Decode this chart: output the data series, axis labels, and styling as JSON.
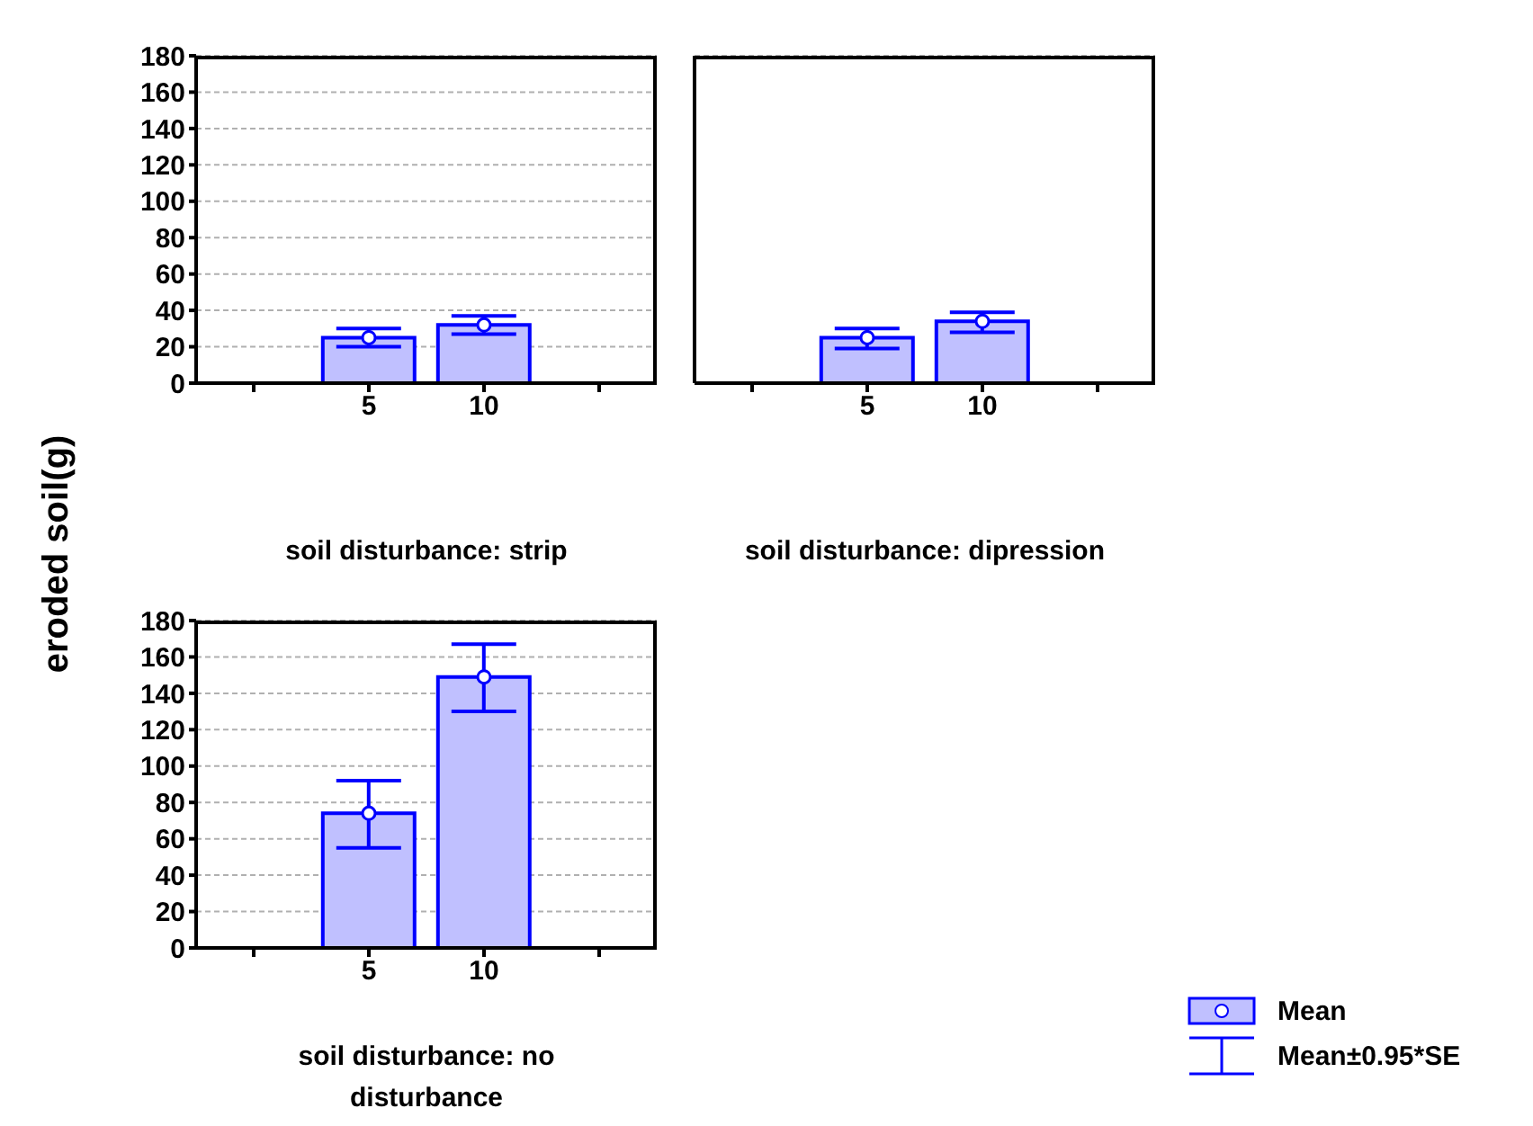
{
  "chart_data": [
    {
      "type": "bar",
      "ylabel": "eroded soil(g)",
      "xlabel": "soil disturbance: strip",
      "categories": [
        null,
        "5",
        "10",
        null
      ],
      "series": [
        {
          "color": "#c0c0ff",
          "values": [
            null,
            25,
            32,
            null
          ],
          "errors": [
            null,
            [
              20,
              30
            ],
            [
              27,
              37
            ],
            null
          ]
        },
        {
          "type": "scatter",
          "color": "#ffffff",
          "x": [
            "5",
            "10"
          ],
          "values": [
            25,
            32
          ]
        }
      ],
      "ylim": [
        0,
        180
      ],
      "yticks": [
        0,
        20,
        40,
        60,
        80,
        100,
        120,
        140,
        160,
        180
      ],
      "grid": "y",
      "marker": "circle"
    },
    {
      "type": "bar",
      "xlabel": "soil disturbance: dipression",
      "categories": [
        null,
        "5",
        "10",
        null
      ],
      "series": [
        {
          "color": "#c0c0ff",
          "values": [
            null,
            25,
            34,
            null
          ],
          "errors": [
            null,
            [
              19,
              30
            ],
            [
              28,
              39
            ],
            null
          ]
        },
        {
          "type": "scatter",
          "color": "#ffffff",
          "x": [
            "5",
            "10"
          ],
          "values": [
            25,
            34
          ]
        }
      ],
      "ylim": [
        0,
        180
      ],
      "yticks": [
        0,
        20,
        40,
        60,
        80,
        100,
        120,
        140,
        160,
        180
      ],
      "grid": "y",
      "marker": "circle",
      "tick_labels": "x"
    },
    {
      "type": "bar",
      "xlabel": "soil disturbance: no disturbance",
      "categories": [
        null,
        "5",
        "10",
        null
      ],
      "series": [
        {
          "name": "Mean",
          "color": "#c0c0ff",
          "values": [
            null,
            74,
            149,
            null
          ],
          "errors": [
            null,
            [
              55,
              92
            ],
            [
              130,
              167
            ],
            null
          ]
        },
        {
          "type": "scatter",
          "color": "#ffffff",
          "x": [
            "5",
            "10"
          ],
          "values": [
            74,
            149
          ]
        }
      ],
      "ylim": [
        0,
        180
      ],
      "yticks": [
        0,
        20,
        40,
        60,
        80,
        100,
        120,
        140,
        160,
        180
      ],
      "grid": "y",
      "marker": "circle",
      "legend": "bottom right",
      "annotations": [
        "Mean±0.95*SE"
      ]
    }
  ]
}
